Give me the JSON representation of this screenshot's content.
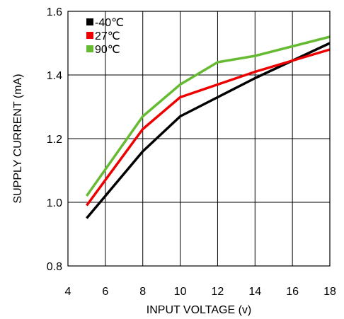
{
  "chart_data": {
    "type": "line",
    "xlabel": "INPUT VOLTAGE (v)",
    "ylabel": "SUPPLY CURRENT (mA)",
    "xlim": [
      4,
      18
    ],
    "ylim": [
      0.8,
      1.6
    ],
    "xticks": [
      4,
      6,
      8,
      10,
      12,
      14,
      16,
      18
    ],
    "yticks": [
      0.8,
      1.0,
      1.2,
      1.4,
      1.6
    ],
    "xtick_labels": [
      "4",
      "6",
      "8",
      "10",
      "12",
      "14",
      "16",
      "18"
    ],
    "ytick_labels": [
      "0.8",
      "1.0",
      "1.2",
      "1.4",
      "1.6"
    ],
    "grid": true,
    "legend_position": "top-left",
    "series": [
      {
        "name": "-40℃",
        "color": "#000000",
        "x": [
          5,
          8,
          10,
          12,
          14,
          16,
          18
        ],
        "y": [
          0.95,
          1.16,
          1.27,
          1.33,
          1.39,
          1.445,
          1.5
        ]
      },
      {
        "name": "27℃",
        "color": "#ee0000",
        "x": [
          5,
          8,
          10,
          12,
          14,
          16,
          18
        ],
        "y": [
          0.99,
          1.23,
          1.33,
          1.37,
          1.41,
          1.445,
          1.48
        ]
      },
      {
        "name": "90℃",
        "color": "#66bb33",
        "x": [
          5,
          8,
          10,
          12,
          14,
          16,
          18
        ],
        "y": [
          1.02,
          1.27,
          1.37,
          1.44,
          1.46,
          1.49,
          1.52
        ]
      }
    ]
  }
}
